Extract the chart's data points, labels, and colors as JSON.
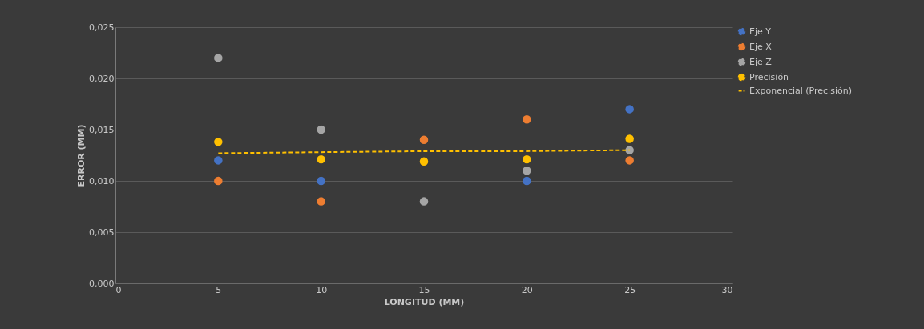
{
  "chart_data": {
    "type": "scatter",
    "xlabel": "LONGITUD (MM)",
    "ylabel": "ERROR (MM)",
    "x": [
      5,
      10,
      15,
      20,
      25
    ],
    "series": [
      {
        "name": "Eje Y",
        "color": "#4472c4",
        "values": [
          0.012,
          0.01,
          null,
          0.01,
          0.017
        ]
      },
      {
        "name": "Eje X",
        "color": "#ed7d31",
        "values": [
          0.01,
          0.008,
          0.014,
          0.016,
          0.012
        ]
      },
      {
        "name": "Eje Z",
        "color": "#a5a5a5",
        "values": [
          0.022,
          0.015,
          0.008,
          0.011,
          0.013
        ]
      },
      {
        "name": "Precisión",
        "color": "#ffc000",
        "values": [
          0.0138,
          0.0121,
          0.0119,
          0.0121,
          0.0141
        ]
      },
      {
        "name": "Exponencial (Precisión)",
        "type": "line",
        "line_style": "dashed",
        "marker": "none",
        "color": "#ffc000",
        "values": [
          0.0127,
          0.0128,
          0.0129,
          0.0129,
          0.013
        ]
      }
    ],
    "xlim": [
      0,
      30
    ],
    "xticks": [
      0,
      5,
      10,
      15,
      20,
      25,
      30
    ],
    "ylim": [
      0,
      0.025
    ],
    "yticks": [
      {
        "value": 0,
        "label": "0,000"
      },
      {
        "value": 0.005,
        "label": "0,005"
      },
      {
        "value": 0.01,
        "label": "0,010"
      },
      {
        "value": 0.015,
        "label": "0,015"
      },
      {
        "value": 0.02,
        "label": "0,020"
      },
      {
        "value": 0.025,
        "label": "0,025"
      }
    ],
    "grid": "y",
    "legend": "right",
    "marker": "circle"
  }
}
